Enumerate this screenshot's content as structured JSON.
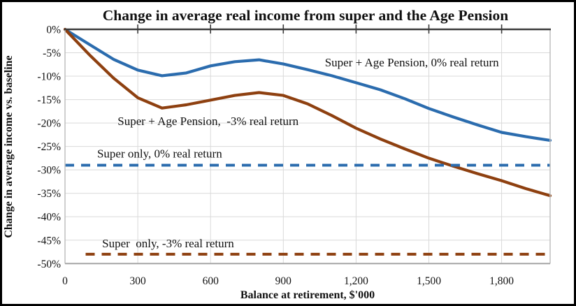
{
  "figure": {
    "title": "Change in average real income from super and the Age Pension",
    "x_axis_title": "Balance at retirement, $'000",
    "y_axis_title": "Change in average income vs. baseline"
  },
  "colors": {
    "blue": "#2b6cae",
    "brown": "#8e4010",
    "brown_text": "#9a4a18",
    "grid": "#d9d9d9",
    "axis_side": "#bfbfbf",
    "axis_bottom": "#a6a6a6",
    "axis_top": "#3a3a3a",
    "border": "#000000",
    "text": "#111111"
  },
  "chart_data": {
    "type": "line",
    "title": "Change in average real income from super and the Age Pension",
    "xlabel": "Balance at retirement, $'000",
    "ylabel": "Change in average income vs. baseline",
    "xlim": [
      0,
      2000
    ],
    "ylim": [
      -50,
      0
    ],
    "grid": true,
    "legend": "inline-labels",
    "x_ticks": [
      0,
      300,
      600,
      900,
      1200,
      1500,
      1800
    ],
    "x_tick_labels": [
      "0",
      "300",
      "600",
      "900",
      "1,200",
      "1,500",
      "1,800"
    ],
    "y_ticks": [
      0,
      -5,
      -10,
      -15,
      -20,
      -25,
      -30,
      -35,
      -40,
      -45,
      -50
    ],
    "y_tick_labels": [
      "0%",
      "-5%",
      "-10%",
      "-15%",
      "-20%",
      "-25%",
      "-30%",
      "-35%",
      "-40%",
      "-45%",
      "-50%"
    ],
    "x": [
      0,
      100,
      200,
      300,
      400,
      500,
      600,
      700,
      800,
      900,
      1000,
      1100,
      1200,
      1300,
      1400,
      1500,
      1600,
      1700,
      1800,
      1900,
      2000
    ],
    "series": [
      {
        "name": "Super + Age Pension, 0% real return",
        "color": "blue",
        "style": "solid",
        "values": [
          0,
          -3.2,
          -6.4,
          -8.7,
          -9.9,
          -9.3,
          -7.8,
          -6.9,
          -6.5,
          -7.4,
          -8.6,
          -9.9,
          -11.4,
          -12.9,
          -14.8,
          -16.9,
          -18.7,
          -20.4,
          -22.0,
          -22.9,
          -23.7
        ]
      },
      {
        "name": "Super + Age Pension,  -3% real return",
        "color": "brown",
        "style": "solid",
        "values": [
          0,
          -5.4,
          -10.4,
          -14.6,
          -16.8,
          -16.1,
          -15.1,
          -14.1,
          -13.5,
          -14.1,
          -15.9,
          -18.4,
          -21.1,
          -23.4,
          -25.5,
          -27.5,
          -29.2,
          -30.8,
          -32.3,
          -34.0,
          -35.5
        ]
      },
      {
        "name": "Super only, 0% real return",
        "color": "blue",
        "style": "dashed",
        "constant": -29,
        "start_x": 0
      },
      {
        "name": "Super  only, -3% real return",
        "color": "brown",
        "style": "dashed",
        "constant": -48,
        "start_x": 85
      }
    ],
    "annotations": [
      {
        "text": "Super + Age Pension, 0% real return",
        "color": "blue",
        "x": 1430,
        "y": -7.0
      },
      {
        "text": "Super + Age Pension,  -3% real return",
        "color": "brown",
        "x": 590,
        "y": -19.5
      },
      {
        "text": "Super only, 0% real return",
        "color": "blue",
        "x": 390,
        "y": -26.5
      },
      {
        "text": "Super  only, -3% real return",
        "color": "brown",
        "x": 425,
        "y": -45.6
      }
    ]
  }
}
